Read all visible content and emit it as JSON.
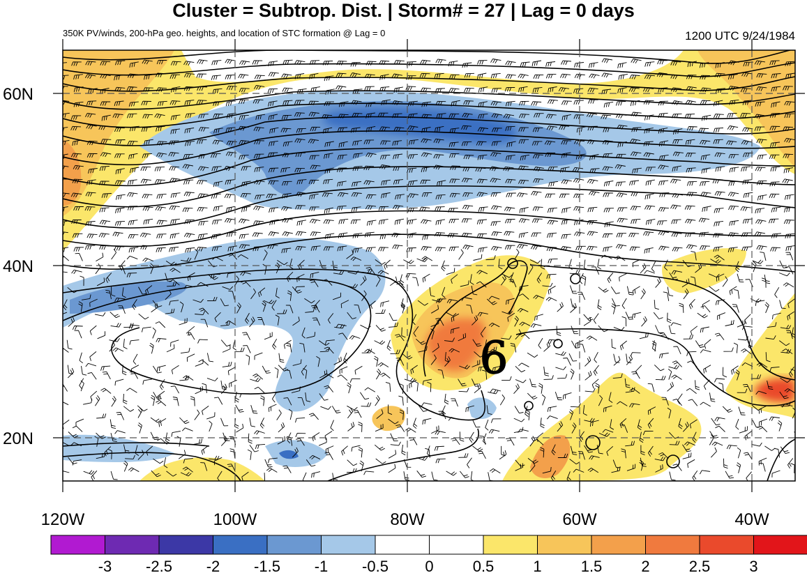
{
  "title": "Cluster = Subtrop. Dist. | Storm# = 27 | Lag = 0 days",
  "subtitle_left": "350K PV/winds, 200-hPa geo. heights, and location of STC formation @ Lag = 0",
  "subtitle_right": "1200 UTC  9/24/1984",
  "storm_marker": "6",
  "lon_labels": [
    "120W",
    "100W",
    "80W",
    "60W",
    "40W"
  ],
  "lat_labels": [
    "60N",
    "40N",
    "20N"
  ],
  "colorbar": {
    "colors": [
      "#b11ad1",
      "#6e2ab2",
      "#3c38a6",
      "#3a6fc3",
      "#6b98d1",
      "#a5c8e8",
      "#ffffff",
      "#ffffff",
      "#fbe66a",
      "#f7c55a",
      "#f3a04b",
      "#f07a3e",
      "#ea4a2c",
      "#e2151a"
    ],
    "labels": [
      "-3",
      "-2.5",
      "-2",
      "-1.5",
      "-1",
      "-0.5",
      "0",
      "0.5",
      "1",
      "1.5",
      "2",
      "2.5",
      "3"
    ]
  }
}
